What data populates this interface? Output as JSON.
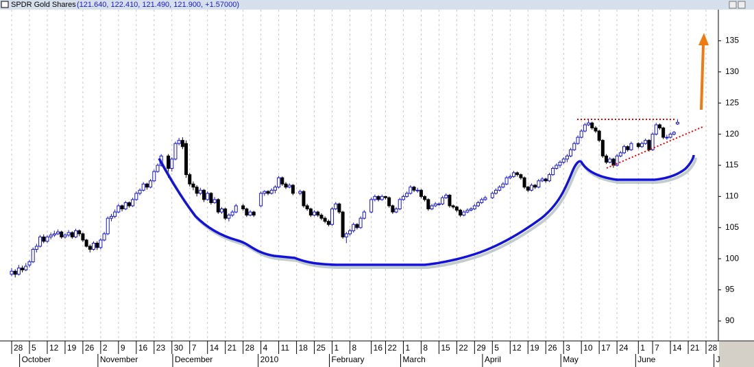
{
  "chart_data": {
    "type": "candlestick",
    "title": "SPDR Gold Shares",
    "quote": "(121.640, 122.410, 121.490, 121.900, +1.57000)",
    "ylim": [
      86.8,
      140
    ],
    "yticks": [
      90,
      95,
      100,
      105,
      110,
      115,
      120,
      125,
      130,
      135
    ],
    "grid": true,
    "up_color": "#1515d0",
    "down_color": "#000000",
    "categories": [
      "28",
      null,
      null,
      null,
      null,
      "5",
      null,
      null,
      null,
      null,
      "12",
      null,
      null,
      null,
      null,
      "19",
      null,
      null,
      null,
      null,
      "26",
      null,
      null,
      null,
      null,
      "2",
      null,
      null,
      null,
      null,
      "9",
      null,
      null,
      null,
      null,
      "16",
      null,
      null,
      null,
      null,
      "23",
      null,
      null,
      null,
      null,
      "30",
      null,
      null,
      null,
      null,
      "7",
      null,
      null,
      null,
      null,
      "14",
      null,
      null,
      null,
      null,
      "21",
      null,
      null,
      null,
      null,
      "28",
      null,
      null,
      null,
      null,
      "4",
      null,
      null,
      null,
      null,
      "11",
      null,
      null,
      null,
      null,
      "18",
      null,
      null,
      null,
      null,
      "25",
      null,
      null,
      null,
      null,
      "1",
      null,
      null,
      null,
      null,
      "8",
      null,
      null,
      null,
      null,
      null,
      "16",
      null,
      null,
      null,
      "22",
      null,
      null,
      null,
      null,
      "1",
      null,
      null,
      null,
      null,
      "8",
      null,
      null,
      null,
      null,
      "15",
      null,
      null,
      null,
      null,
      "22",
      null,
      null,
      null,
      null,
      "29",
      null,
      null,
      null,
      null,
      "5",
      null,
      null,
      null,
      null,
      "12",
      null,
      null,
      null,
      null,
      "19",
      null,
      null,
      null,
      null,
      "26",
      null,
      null,
      null,
      null,
      "3",
      null,
      null,
      null,
      null,
      "10",
      null,
      null,
      null,
      null,
      "17",
      null,
      null,
      null,
      null,
      "24",
      null,
      null,
      null,
      null,
      null,
      "1",
      null,
      null,
      null,
      "7",
      null,
      null,
      null,
      null,
      "14",
      null,
      null,
      null,
      null,
      "21",
      null,
      null,
      null,
      null,
      "28",
      null,
      null,
      null
    ],
    "months": [
      null,
      null,
      null,
      "October",
      null,
      null,
      null,
      null,
      null,
      null,
      null,
      null,
      null,
      null,
      null,
      null,
      null,
      null,
      null,
      null,
      null,
      null,
      null,
      null,
      null,
      "November",
      null,
      null,
      null,
      null,
      null,
      null,
      null,
      null,
      null,
      null,
      null,
      null,
      null,
      null,
      null,
      null,
      null,
      null,
      null,
      null,
      "December",
      null,
      null,
      null,
      null,
      null,
      null,
      null,
      null,
      null,
      null,
      null,
      null,
      null,
      null,
      null,
      null,
      null,
      null,
      null,
      null,
      null,
      null,
      null,
      "2010",
      null,
      null,
      null,
      null,
      null,
      null,
      null,
      null,
      null,
      null,
      null,
      null,
      null,
      null,
      null,
      null,
      null,
      null,
      null,
      "February",
      null,
      null,
      null,
      null,
      null,
      null,
      null,
      null,
      null,
      null,
      null,
      null,
      null,
      null,
      null,
      null,
      null,
      null,
      null,
      "March",
      null,
      null,
      null,
      null,
      null,
      null,
      null,
      null,
      null,
      null,
      null,
      null,
      null,
      null,
      null,
      null,
      null,
      null,
      null,
      null,
      null,
      null,
      "April",
      null,
      null,
      null,
      null,
      null,
      null,
      null,
      null,
      null,
      null,
      null,
      null,
      null,
      null,
      null,
      null,
      null,
      null,
      null,
      null,
      null,
      "May",
      null,
      null,
      null,
      null,
      null,
      null,
      null,
      null,
      null,
      null,
      null,
      null,
      null,
      null,
      null,
      null,
      null,
      null,
      null,
      null,
      "June",
      null,
      null,
      null,
      null,
      null,
      null,
      null,
      null,
      null,
      null,
      null,
      null,
      null,
      null,
      null,
      null,
      null,
      null,
      null,
      null,
      null,
      "J"
    ],
    "ohlc": [
      [
        97.5,
        98.5,
        97.2,
        98.0
      ],
      [
        98.0,
        98.3,
        97.0,
        97.5
      ],
      [
        97.5,
        99.0,
        97.3,
        98.5
      ],
      [
        98.5,
        98.9,
        97.8,
        98.2
      ],
      [
        98.2,
        99.3,
        98.0,
        98.8
      ],
      [
        99.0,
        99.8,
        98.6,
        99.5
      ],
      [
        99.5,
        101.8,
        99.3,
        101.5
      ],
      [
        101.5,
        102.4,
        101.0,
        102.0
      ],
      [
        102.0,
        103.8,
        101.8,
        103.5
      ],
      [
        103.5,
        103.9,
        102.5,
        102.8
      ],
      [
        102.8,
        103.8,
        102.5,
        103.5
      ],
      [
        103.5,
        104.2,
        103.1,
        103.8
      ],
      [
        103.8,
        104.5,
        103.5,
        104.0
      ],
      [
        104.0,
        104.7,
        103.8,
        104.3
      ],
      [
        104.3,
        104.5,
        103.2,
        103.5
      ],
      [
        103.5,
        104.1,
        103.2,
        103.8
      ],
      [
        103.8,
        104.6,
        103.5,
        104.2
      ],
      [
        104.2,
        104.4,
        103.2,
        103.5
      ],
      [
        103.5,
        104.8,
        103.3,
        104.5
      ],
      [
        104.5,
        104.7,
        103.6,
        104.0
      ],
      [
        104.0,
        104.2,
        102.7,
        103.0
      ],
      [
        103.0,
        103.2,
        101.8,
        102.0
      ],
      [
        102.0,
        102.3,
        101.0,
        101.5
      ],
      [
        101.5,
        102.8,
        101.3,
        102.5
      ],
      [
        102.5,
        102.8,
        101.4,
        101.8
      ],
      [
        101.8,
        103.3,
        101.5,
        103.0
      ],
      [
        103.0,
        104.3,
        102.8,
        104.0
      ],
      [
        104.0,
        106.8,
        103.8,
        106.5
      ],
      [
        106.5,
        107.2,
        106.0,
        106.8
      ],
      [
        106.8,
        107.9,
        106.5,
        107.5
      ],
      [
        107.5,
        108.8,
        107.3,
        108.5
      ],
      [
        108.5,
        108.7,
        107.6,
        108.0
      ],
      [
        108.0,
        109.3,
        107.8,
        109.0
      ],
      [
        109.0,
        109.2,
        108.2,
        108.5
      ],
      [
        108.5,
        109.8,
        108.3,
        109.5
      ],
      [
        109.5,
        110.8,
        109.3,
        110.5
      ],
      [
        110.5,
        111.3,
        110.2,
        111.0
      ],
      [
        111.0,
        112.3,
        110.8,
        112.0
      ],
      [
        112.0,
        112.2,
        111.1,
        111.5
      ],
      [
        111.5,
        112.8,
        111.3,
        112.5
      ],
      [
        112.5,
        114.3,
        112.3,
        114.0
      ],
      [
        114.0,
        115.3,
        113.8,
        115.0
      ],
      [
        115.0,
        116.8,
        114.8,
        116.5
      ],
      null,
      [
        116.5,
        116.8,
        113.0,
        114.5
      ],
      [
        114.5,
        116.3,
        114.0,
        116.0
      ],
      [
        116.0,
        118.8,
        115.8,
        118.5
      ],
      [
        118.5,
        119.4,
        118.2,
        119.0
      ],
      [
        119.0,
        119.5,
        117.6,
        118.0
      ],
      [
        118.5,
        119.0,
        113.0,
        113.5
      ],
      [
        113.5,
        113.8,
        111.6,
        112.0
      ],
      [
        112.0,
        112.4,
        111.0,
        111.5
      ],
      [
        111.5,
        111.8,
        110.0,
        110.5
      ],
      [
        110.5,
        111.4,
        110.2,
        111.0
      ],
      [
        111.0,
        111.2,
        109.1,
        109.5
      ],
      [
        109.5,
        110.8,
        109.3,
        110.5
      ],
      [
        110.5,
        110.7,
        108.7,
        109.0
      ],
      [
        109.0,
        109.9,
        108.8,
        109.5
      ],
      [
        109.5,
        109.7,
        107.2,
        107.5
      ],
      [
        107.5,
        108.3,
        107.2,
        108.0
      ],
      [
        108.0,
        108.2,
        106.2,
        106.5
      ],
      [
        106.5,
        107.3,
        106.0,
        107.0
      ],
      [
        107.0,
        107.8,
        106.7,
        107.5
      ],
      [
        107.5,
        108.8,
        107.3,
        108.5
      ],
      null,
      [
        108.5,
        108.8,
        107.7,
        108.0
      ],
      [
        108.0,
        108.2,
        106.7,
        107.0
      ],
      [
        107.0,
        107.8,
        106.8,
        107.5
      ],
      [
        107.5,
        107.7,
        106.7,
        107.0
      ],
      null,
      [
        108.5,
        110.8,
        108.3,
        110.5
      ],
      [
        110.5,
        111.0,
        110.1,
        110.8
      ],
      [
        110.8,
        111.0,
        110.2,
        110.5
      ],
      [
        110.5,
        111.3,
        110.3,
        111.0
      ],
      [
        111.0,
        111.8,
        110.5,
        111.5
      ],
      [
        111.5,
        113.3,
        111.3,
        113.0
      ],
      [
        113.0,
        113.2,
        111.7,
        112.0
      ],
      [
        112.0,
        112.3,
        111.2,
        111.5
      ],
      [
        111.5,
        112.1,
        111.3,
        111.8
      ],
      [
        111.8,
        112.0,
        110.2,
        110.5
      ],
      null,
      [
        110.5,
        111.1,
        110.2,
        110.8
      ],
      [
        110.8,
        111.0,
        108.2,
        108.5
      ],
      [
        108.5,
        108.8,
        107.7,
        108.0
      ],
      [
        108.0,
        108.2,
        106.7,
        107.0
      ],
      [
        107.0,
        107.8,
        106.8,
        107.5
      ],
      [
        107.5,
        107.7,
        106.7,
        107.0
      ],
      [
        107.0,
        107.3,
        106.2,
        106.5
      ],
      [
        106.5,
        106.8,
        105.7,
        106.0
      ],
      [
        106.0,
        106.3,
        105.2,
        105.5
      ],
      [
        105.5,
        108.3,
        105.3,
        108.0
      ],
      [
        108.0,
        109.1,
        107.8,
        108.8
      ],
      [
        108.8,
        109.0,
        107.2,
        107.5
      ],
      [
        107.5,
        107.7,
        103.2,
        103.5
      ],
      [
        103.5,
        104.3,
        102.5,
        104.0
      ],
      [
        104.0,
        104.8,
        103.7,
        104.5
      ],
      [
        104.5,
        105.8,
        104.2,
        105.5
      ],
      [
        105.5,
        105.7,
        104.7,
        105.0
      ],
      [
        105.0,
        106.8,
        104.8,
        106.5
      ],
      [
        106.5,
        107.8,
        106.3,
        107.5
      ],
      null,
      [
        107.5,
        109.8,
        107.3,
        109.5
      ],
      [
        109.5,
        110.3,
        109.2,
        110.0
      ],
      [
        110.0,
        110.2,
        109.2,
        109.5
      ],
      [
        109.5,
        110.3,
        109.3,
        110.0
      ],
      [
        110.0,
        110.1,
        109.5,
        109.8
      ],
      [
        109.8,
        110.0,
        108.2,
        108.5
      ],
      [
        108.5,
        108.7,
        107.2,
        107.5
      ],
      [
        107.5,
        108.3,
        107.3,
        108.0
      ],
      [
        108.0,
        109.8,
        107.8,
        109.5
      ],
      [
        109.5,
        110.3,
        109.3,
        110.0
      ],
      [
        110.0,
        110.8,
        109.8,
        110.5
      ],
      [
        110.5,
        111.8,
        110.3,
        111.5
      ],
      [
        111.5,
        111.7,
        110.7,
        111.0
      ],
      [
        111.0,
        111.4,
        110.6,
        111.0
      ],
      [
        111.0,
        111.2,
        109.7,
        110.0
      ],
      [
        110.0,
        110.2,
        109.2,
        109.5
      ],
      [
        109.5,
        109.7,
        107.7,
        108.0
      ],
      [
        108.0,
        108.8,
        107.8,
        108.5
      ],
      [
        108.5,
        109.1,
        108.3,
        108.8
      ],
      [
        108.8,
        109.0,
        108.5,
        108.8
      ],
      [
        108.8,
        110.1,
        108.6,
        109.8
      ],
      [
        109.8,
        110.5,
        109.6,
        110.2
      ],
      [
        110.2,
        110.4,
        108.2,
        108.5
      ],
      [
        108.5,
        108.7,
        108.0,
        108.3
      ],
      [
        108.3,
        108.5,
        107.5,
        107.8
      ],
      [
        107.8,
        108.0,
        106.7,
        107.0
      ],
      [
        107.0,
        107.8,
        106.8,
        107.5
      ],
      [
        107.5,
        108.1,
        107.3,
        107.8
      ],
      [
        107.8,
        108.3,
        107.6,
        108.0
      ],
      [
        108.0,
        108.8,
        107.8,
        108.5
      ],
      [
        108.5,
        109.3,
        108.3,
        109.0
      ],
      [
        109.0,
        109.8,
        108.8,
        109.5
      ],
      [
        109.5,
        110.1,
        109.3,
        109.8
      ],
      null,
      [
        109.8,
        110.8,
        109.6,
        110.5
      ],
      [
        110.5,
        111.3,
        110.3,
        111.0
      ],
      [
        111.0,
        111.8,
        110.8,
        111.5
      ],
      [
        111.5,
        112.3,
        111.3,
        112.0
      ],
      [
        112.0,
        113.3,
        111.8,
        113.0
      ],
      [
        113.0,
        113.5,
        112.8,
        113.2
      ],
      [
        113.2,
        114.1,
        113.0,
        113.8
      ],
      [
        113.8,
        114.0,
        113.2,
        113.5
      ],
      [
        113.5,
        113.7,
        112.7,
        113.0
      ],
      [
        113.0,
        113.2,
        111.2,
        111.5
      ],
      [
        111.5,
        111.7,
        110.7,
        111.0
      ],
      [
        111.0,
        112.1,
        110.8,
        111.8
      ],
      [
        111.8,
        112.0,
        111.2,
        111.5
      ],
      [
        111.5,
        112.8,
        111.3,
        112.5
      ],
      [
        112.5,
        113.1,
        112.3,
        112.8
      ],
      [
        112.8,
        113.0,
        112.2,
        112.5
      ],
      [
        112.5,
        113.8,
        112.3,
        113.5
      ],
      [
        113.5,
        114.8,
        113.3,
        114.5
      ],
      [
        114.5,
        115.3,
        114.3,
        115.0
      ],
      [
        115.0,
        115.8,
        114.6,
        115.5
      ],
      [
        115.5,
        116.3,
        115.2,
        116.0
      ],
      [
        116.0,
        116.8,
        115.5,
        116.5
      ],
      [
        116.5,
        117.8,
        116.3,
        117.5
      ],
      [
        117.5,
        118.8,
        117.3,
        118.5
      ],
      [
        118.5,
        119.8,
        118.3,
        119.5
      ],
      [
        119.5,
        120.8,
        119.3,
        120.5
      ],
      [
        120.5,
        121.8,
        120.3,
        121.5
      ],
      [
        121.5,
        122.3,
        121.3,
        121.8
      ],
      [
        121.8,
        122.0,
        120.7,
        121.0
      ],
      [
        121.0,
        121.3,
        120.2,
        120.5
      ],
      [
        120.5,
        120.7,
        118.7,
        119.0
      ],
      [
        119.0,
        119.2,
        116.2,
        116.5
      ],
      [
        116.5,
        116.8,
        115.2,
        115.5
      ],
      [
        115.5,
        116.3,
        115.3,
        116.0
      ],
      [
        116.0,
        116.2,
        114.6,
        115.0
      ],
      [
        115.0,
        116.8,
        114.8,
        116.5
      ],
      [
        116.5,
        117.3,
        116.3,
        117.0
      ],
      [
        117.0,
        118.3,
        116.8,
        118.0
      ],
      [
        118.0,
        118.2,
        117.2,
        117.5
      ],
      [
        117.5,
        118.8,
        117.3,
        118.5
      ],
      null,
      [
        118.5,
        118.7,
        117.7,
        118.0
      ],
      [
        118.0,
        118.8,
        117.8,
        118.5
      ],
      [
        118.5,
        119.3,
        118.3,
        119.0
      ],
      [
        119.0,
        119.2,
        117.2,
        117.5
      ],
      [
        117.5,
        120.3,
        117.3,
        120.0
      ],
      [
        120.0,
        121.8,
        119.8,
        121.5
      ],
      [
        121.5,
        121.7,
        120.7,
        121.0
      ],
      [
        121.0,
        121.2,
        119.2,
        119.5
      ],
      [
        119.5,
        119.9,
        119.1,
        119.5
      ],
      [
        119.5,
        120.3,
        119.3,
        120.0
      ],
      [
        120.0,
        120.5,
        119.8,
        120.3
      ],
      [
        121.64,
        122.41,
        121.49,
        121.9
      ],
      null,
      null,
      null,
      null,
      null,
      null,
      null,
      null,
      null,
      null,
      null
    ]
  }
}
